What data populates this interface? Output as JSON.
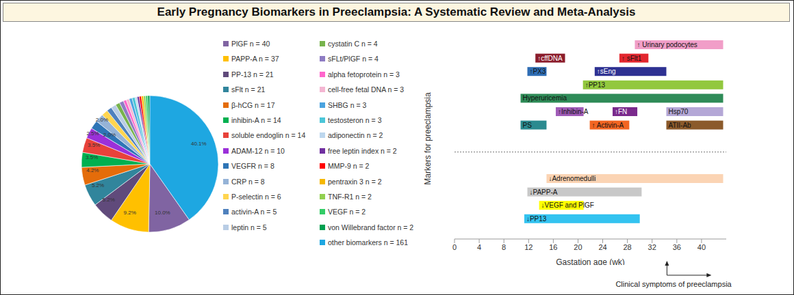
{
  "title": "Early Pregnancy Biomarkers in Preeclampsia: A Systematic Review and Meta-Analysis",
  "chart_data": [
    {
      "type": "pie",
      "categories": [
        "PlGF n = 40",
        "PAPP-A n = 37",
        "PP-13 n = 21",
        "sFlt n = 21",
        "β-hCG n = 17",
        "inhibin-A n = 14",
        "soluble endoglin n = 14",
        "ADAM-12 n = 10",
        "VEGFR n = 8",
        "CRP n = 8",
        "P-selectin n = 6",
        "activin-A n = 5",
        "leptin n = 5",
        "cystatin C n = 4",
        "sFLt/PlGF n = 4",
        "alpha fetoprotein n = 3",
        "cell-free fetal DNA n = 3",
        "SHBG n = 3",
        "testosteron n = 3",
        "adiponectin n = 2",
        "free leptin index n = 2",
        "MMP-9 n = 2",
        "pentraxin 3 n = 2",
        "TNF-R1 n = 2",
        "VEGF n = 2",
        "von Willebrand factor n = 2",
        "other biomarkers n = 161"
      ],
      "values": [
        10.0,
        9.2,
        5.2,
        5.2,
        4.2,
        3.5,
        3.5,
        2.5,
        2.0,
        2.0,
        1.5,
        1.2,
        1.2,
        1.0,
        1.0,
        0.7,
        0.7,
        0.7,
        0.7,
        0.5,
        0.5,
        0.5,
        0.5,
        0.5,
        0.5,
        0.5,
        40.1
      ],
      "value_labels": [
        "10.0%",
        "9.2%",
        "5.2%",
        "5.2%",
        "4.2%",
        "3.5%",
        "3.5%",
        "2.5%",
        "2.0%",
        "2.0%",
        null,
        null,
        null,
        null,
        null,
        null,
        null,
        null,
        null,
        null,
        null,
        null,
        null,
        null,
        null,
        null,
        "40.1%"
      ],
      "colors": [
        "#8064a2",
        "#ffc000",
        "#604a7b",
        "#31859c",
        "#e46c0a",
        "#00b050",
        "#e8423a",
        "#9b30d9",
        "#2e75b6",
        "#95b3d7",
        "#ffd54f",
        "#4f81bd",
        "#b9cde5",
        "#77b34c",
        "#8e7cc3",
        "#ff66cc",
        "#f4b6d2",
        "#4aa3df",
        "#4bc6d8",
        "#bdd7ee",
        "#7030a0",
        "#ff0000",
        "#f5b800",
        "#92d050",
        "#33cc66",
        "#00a050",
        "#1ea7e1"
      ],
      "legend": "right"
    },
    {
      "type": "gantt",
      "orientation": "horizontal",
      "categories": [
        null,
        null,
        null,
        null,
        null,
        null,
        null,
        null,
        null,
        null,
        null,
        null,
        null,
        null,
        null
      ],
      "series": [
        {
          "values": [
            [
              29.2,
              43.5
            ],
            [
              13.1,
              17.9
            ],
            [
              11.8,
              14.9
            ],
            [
              20.8,
              43.5
            ],
            [
              10.7,
              43.5
            ],
            [
              16.4,
              20.9
            ],
            [
              10.7,
              14.9
            ],
            null,
            null,
            null,
            [
              14.9,
              43.5
            ],
            [
              11.8,
              30.3
            ],
            [
              13.7,
              20.9
            ],
            [
              11.3,
              30.0
            ],
            null
          ],
          "labels": [
            "↑ Urinary podocytes",
            "↑cffDNA",
            "↑PX3",
            "↑PP13",
            "Hyperuricemia",
            "↑Inhibin-A",
            "PS",
            null,
            null,
            null,
            "↓Adrenomedulli",
            "↓PAPP-A",
            "↓VEGF and PlGF",
            "↓PP13",
            null
          ],
          "colors": [
            "#f19ec8",
            "#8b1c2b",
            "#2e6db4",
            "#92c83e",
            "#2e8b57",
            "#a05cb8",
            "#2b8a8f",
            null,
            null,
            null,
            "#fbd4b4",
            "#c8c8c8",
            "#ffff00",
            "#33c3f0",
            null
          ]
        },
        {
          "values": [
            null,
            [
              26.7,
              31.4
            ],
            [
              22.7,
              34.3
            ],
            null,
            null,
            [
              25.6,
              29.6
            ],
            [
              21.9,
              28.3
            ],
            null,
            null,
            null,
            null,
            null,
            null,
            null,
            null
          ],
          "labels": [
            null,
            "↑ sFlt1",
            "↑sEng",
            null,
            null,
            "↑FN",
            "↑ Activin-A",
            null,
            null,
            null,
            null,
            null,
            null,
            null,
            null
          ],
          "colors": [
            null,
            "#e3262e",
            "#2e3192",
            null,
            null,
            "#7a2a8c",
            "#f26522",
            null,
            null,
            null,
            null,
            null,
            null,
            null,
            null
          ]
        },
        {
          "values": [
            null,
            null,
            null,
            null,
            null,
            [
              34.3,
              43.5
            ],
            [
              34.3,
              43.5
            ],
            null,
            null,
            null,
            null,
            null,
            null,
            null,
            null
          ],
          "labels": [
            null,
            null,
            null,
            null,
            null,
            "Hsp70",
            "ATII-Ab",
            null,
            null,
            null,
            null,
            null,
            null,
            null,
            null
          ],
          "colors": [
            null,
            null,
            null,
            null,
            null,
            "#b4a7d6",
            "#8b5a2b",
            null,
            null,
            null,
            null,
            null,
            null,
            null,
            null
          ]
        }
      ],
      "xlim": [
        0,
        44
      ],
      "xticks": [
        0,
        4,
        8,
        12,
        16,
        20,
        24,
        28,
        32,
        36,
        40
      ],
      "x_label": "Gastation age (wk)",
      "y_label": "Markers for preeclampsia",
      "annotation": {
        "text": "Clinical symptoms of preeclampsia",
        "x": 34.4
      },
      "tick_labels": "x"
    }
  ]
}
